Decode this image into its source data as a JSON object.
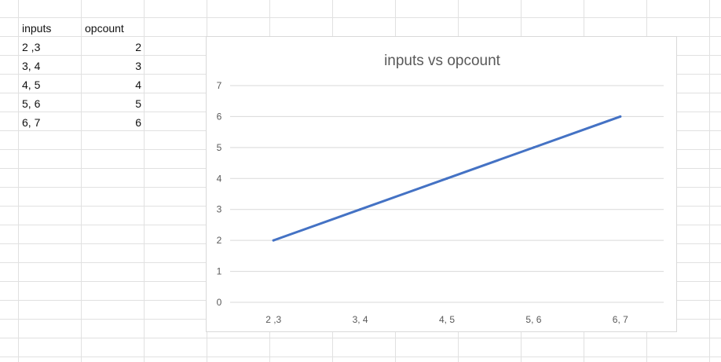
{
  "sheet": {
    "headers": {
      "col_a": "inputs",
      "col_b": "opcount"
    },
    "rows": [
      {
        "inputs": "2 ,3",
        "opcount": "2"
      },
      {
        "inputs": "3, 4",
        "opcount": "3"
      },
      {
        "inputs": "4, 5",
        "opcount": "4"
      },
      {
        "inputs": "5, 6",
        "opcount": "5"
      },
      {
        "inputs": "6, 7",
        "opcount": "6"
      }
    ]
  },
  "chart_data": {
    "type": "line",
    "title": "inputs vs opcount",
    "categories": [
      "2 ,3",
      "3, 4",
      "4, 5",
      "5, 6",
      "6, 7"
    ],
    "values": [
      2,
      3,
      4,
      5,
      6
    ],
    "yticks": [
      "0",
      "1",
      "2",
      "3",
      "4",
      "5",
      "6",
      "7"
    ],
    "ylim": [
      0,
      7
    ],
    "grid": true,
    "legend": "none",
    "line_color": "#4472C4",
    "gridline_color": "#d9d9d9"
  }
}
